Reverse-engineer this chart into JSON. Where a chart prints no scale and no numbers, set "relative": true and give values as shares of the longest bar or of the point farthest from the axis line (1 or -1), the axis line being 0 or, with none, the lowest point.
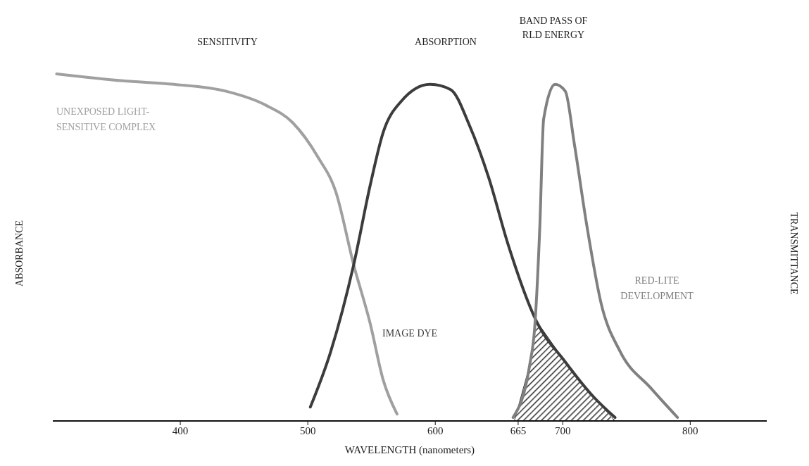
{
  "chart_data": {
    "type": "line",
    "relative": true,
    "xlabel": "WAVELENGTH (nanometers)",
    "ylabel": "ABSORBANCE",
    "y2label": "TRANSMITTANCE",
    "xlim": [
      300,
      860
    ],
    "xticks": [
      400,
      500,
      600,
      665,
      700,
      800
    ],
    "annotations": [
      "SENSITIVITY",
      "ABSORPTION",
      "BAND PASS OF RLD ENERGY"
    ],
    "series": [
      {
        "name": "UNEXPOSED LIGHT-SENSITIVE COMPLEX",
        "color": "#a0a0a0",
        "x": [
          303,
          355,
          395,
          436,
          467,
          488,
          508,
          522,
          536,
          549,
          559,
          570
        ],
        "values": [
          1.0,
          0.98,
          0.97,
          0.95,
          0.91,
          0.86,
          0.76,
          0.66,
          0.45,
          0.28,
          0.12,
          0.02
        ]
      },
      {
        "name": "IMAGE DYE",
        "color": "#3c3c3c",
        "x": [
          502,
          518,
          536,
          549,
          559,
          573,
          596,
          612,
          627,
          642,
          657,
          679,
          702,
          724,
          741
        ],
        "values": [
          0.04,
          0.2,
          0.45,
          0.68,
          0.83,
          0.92,
          0.97,
          0.955,
          0.85,
          0.7,
          0.51,
          0.29,
          0.17,
          0.07,
          0.01
        ]
      },
      {
        "name": "RED-LITE DEVELOPMENT",
        "color": "#808080",
        "x": [
          661,
          674,
          678,
          682,
          685,
          694,
          702,
          709,
          719,
          730,
          745,
          769,
          790
        ],
        "values": [
          0.01,
          0.16,
          0.27,
          0.56,
          0.87,
          0.97,
          0.95,
          0.8,
          0.56,
          0.34,
          0.2,
          0.095,
          0.01
        ]
      },
      {
        "type": "area",
        "color": "#333333",
        "x": [
          662,
          674,
          678,
          679,
          702,
          724,
          741
        ],
        "values": [
          0,
          0.16,
          0.27,
          0.29,
          0.17,
          0.07,
          0
        ]
      }
    ]
  }
}
